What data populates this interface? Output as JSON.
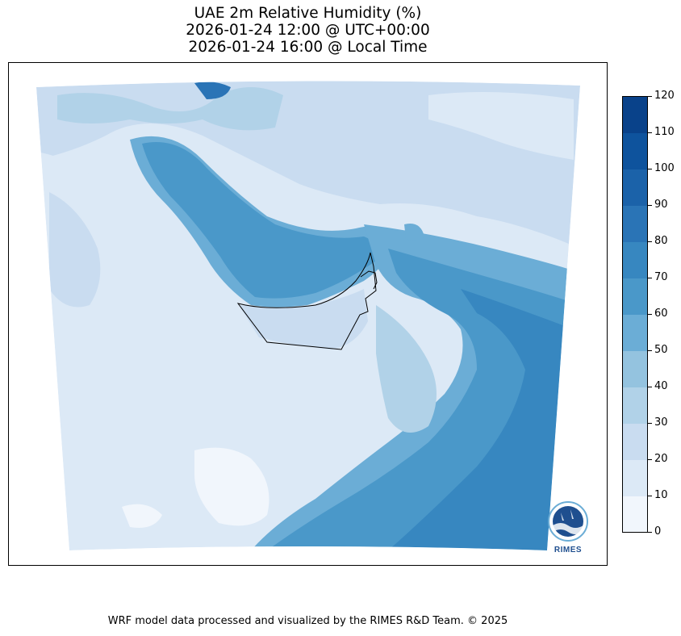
{
  "title": {
    "line1": "UAE 2m Relative Humidity (%)",
    "line2": "2026-01-24 12:00 @ UTC+00:00",
    "line3": "2026-01-24 16:00 @ Local Time"
  },
  "colorbar": {
    "ticks": [
      "120",
      "110",
      "100",
      "90",
      "80",
      "70",
      "60",
      "50",
      "40",
      "30",
      "20",
      "10",
      "0"
    ],
    "levels": [
      0,
      10,
      20,
      30,
      40,
      50,
      60,
      70,
      80,
      90,
      100,
      110,
      120
    ],
    "colors": [
      "#f1f6fc",
      "#dce9f6",
      "#c9dcf0",
      "#b1d2e8",
      "#94c3df",
      "#6badd6",
      "#4a98c9",
      "#3787c0",
      "#2a74b6",
      "#1b62a9",
      "#0e539d",
      "#09428a"
    ]
  },
  "logo": {
    "text": "RIMES"
  },
  "footer": {
    "text": "WRF model data processed and visualized by the RIMES R&D Team. © 2025"
  }
}
